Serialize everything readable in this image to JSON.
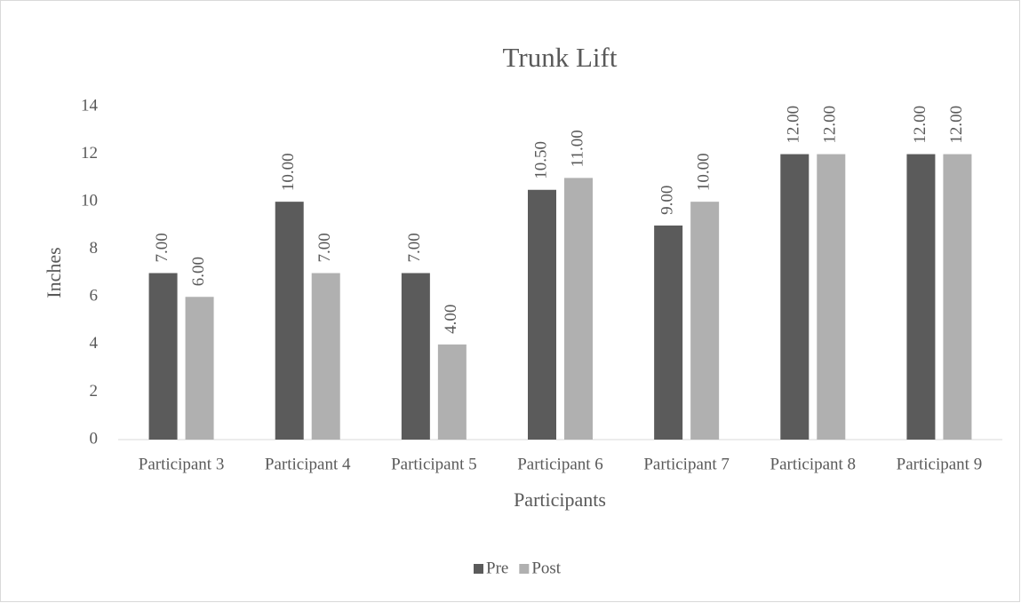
{
  "chart_data": {
    "type": "bar",
    "title": "Trunk Lift",
    "categories": [
      "Participant 3",
      "Participant 4",
      "Participant 5",
      "Participant 6",
      "Participant 7",
      "Participant 8",
      "Participant 9"
    ],
    "series": [
      {
        "name": "Pre",
        "color": "#5b5b5b",
        "values": [
          7,
          10,
          7,
          10.5,
          9,
          12,
          12
        ],
        "value_labels": [
          "7.00",
          "10.00",
          "7.00",
          "10.50",
          "9.00",
          "12.00",
          "12.00"
        ]
      },
      {
        "name": "Post",
        "color": "#b0b0b0",
        "values": [
          6,
          7,
          4,
          11,
          10,
          12,
          12
        ],
        "value_labels": [
          "6.00",
          "7.00",
          "4.00",
          "11.00",
          "10.00",
          "12.00",
          "12.00"
        ]
      }
    ],
    "xlabel": "Participants",
    "ylabel": "Inches",
    "ylim": [
      0,
      14
    ],
    "yticks": [
      0,
      2,
      4,
      6,
      8,
      10,
      12,
      14
    ],
    "legend": "bottom"
  }
}
